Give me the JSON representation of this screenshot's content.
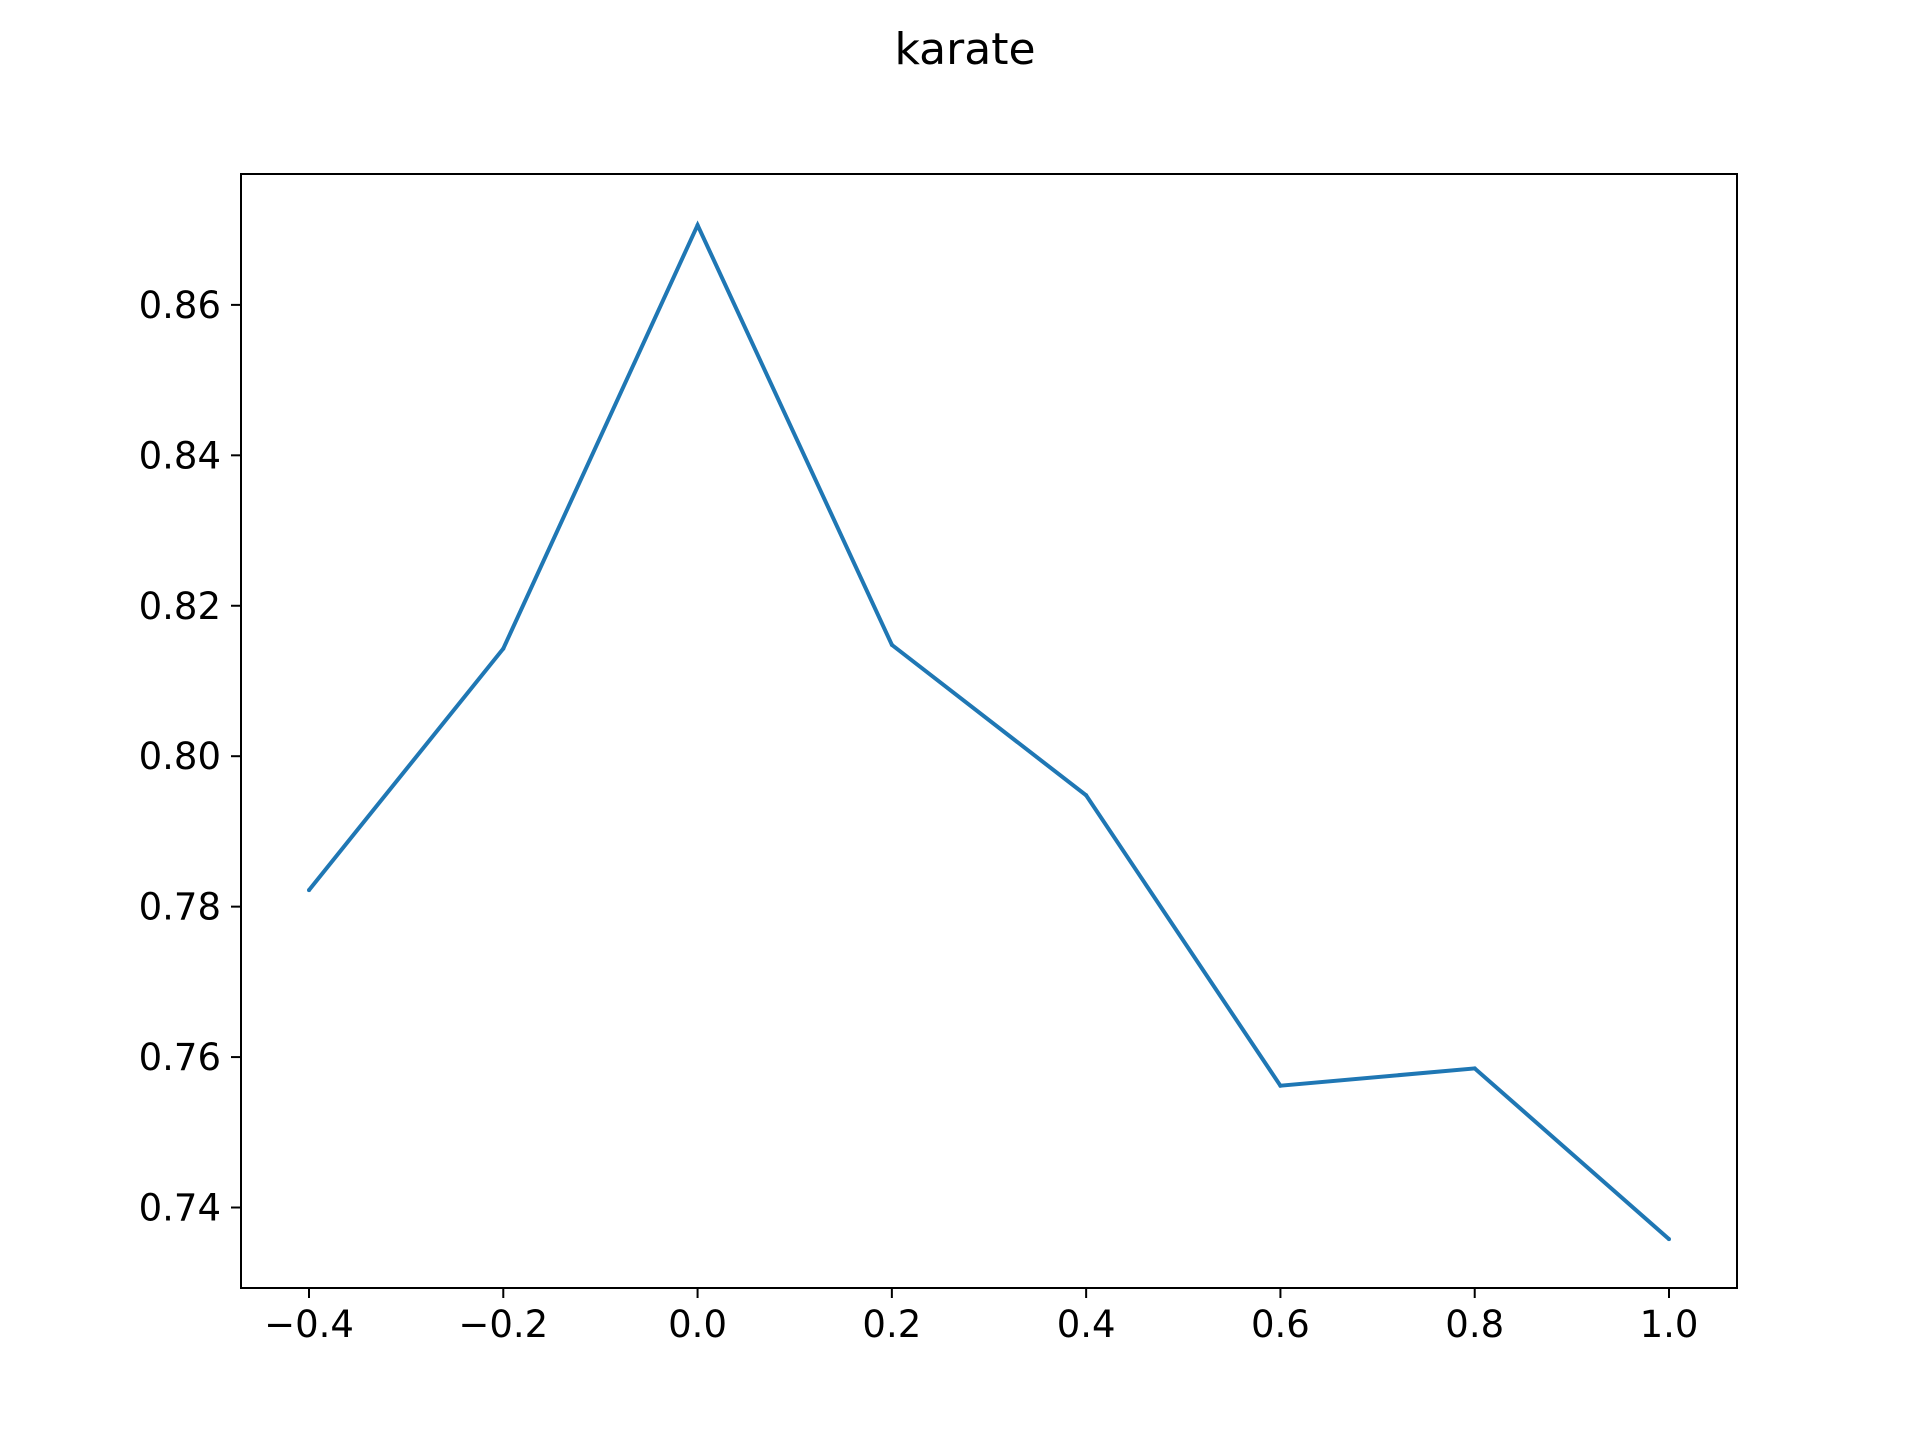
{
  "chart_data": {
    "type": "line",
    "title": "karate",
    "xlabel": "",
    "ylabel": "",
    "x": [
      -0.4,
      -0.2,
      0.0,
      0.2,
      0.4,
      0.6,
      0.8,
      1.0
    ],
    "series": [
      {
        "color": "#1f77b4",
        "values": [
          0.7822,
          0.8143,
          0.8706,
          0.8148,
          0.7948,
          0.7562,
          0.7585,
          0.7358
        ]
      }
    ],
    "xticks": [
      -0.4,
      -0.2,
      0.0,
      0.2,
      0.4,
      0.6,
      0.8,
      1.0
    ],
    "xtick_labels": [
      "−0.4",
      "−0.2",
      "0.0",
      "0.2",
      "0.4",
      "0.6",
      "0.8",
      "1.0"
    ],
    "yticks": [
      0.74,
      0.76,
      0.78,
      0.8,
      0.82,
      0.84,
      0.86
    ],
    "ytick_labels": [
      "0.74",
      "0.76",
      "0.78",
      "0.80",
      "0.82",
      "0.84",
      "0.86"
    ],
    "xlim": [
      -0.47,
      1.07
    ],
    "ylim": [
      0.7293,
      0.8774
    ],
    "grid": false,
    "legend": "none"
  }
}
